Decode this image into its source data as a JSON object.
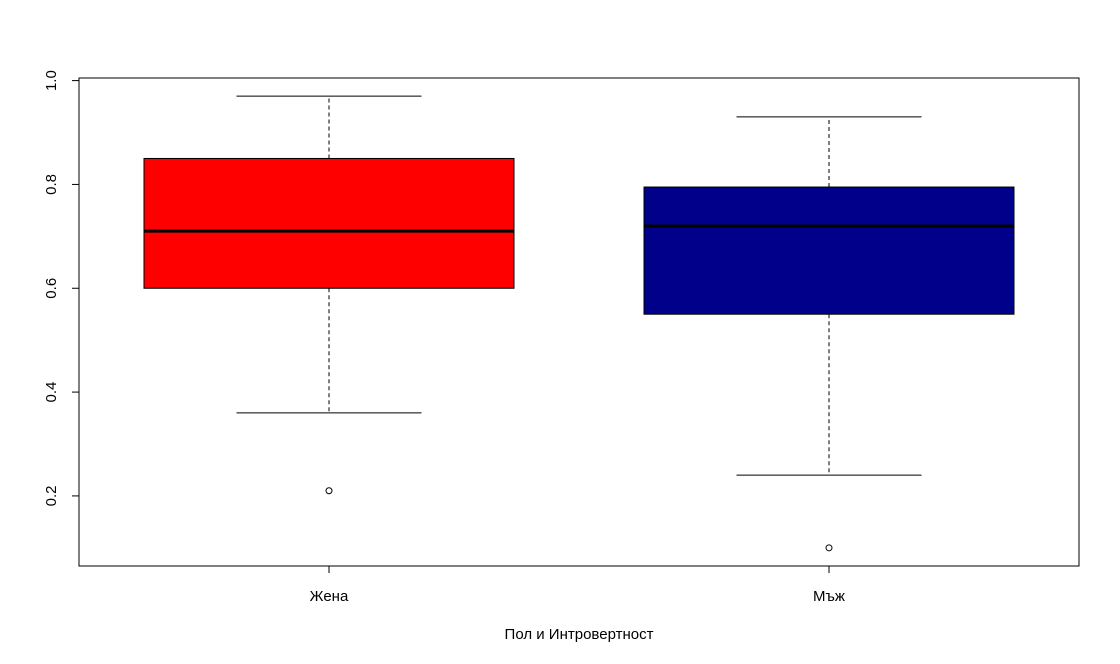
{
  "chart_data": {
    "type": "boxplot",
    "title": "",
    "xlabel": "Пол и Интровертност",
    "ylabel": "",
    "ylim": [
      0.065,
      1.005
    ],
    "yticks": [
      0.2,
      0.4,
      0.6,
      0.8,
      1.0
    ],
    "ytick_labels": [
      "0.2",
      "0.4",
      "0.6",
      "0.8",
      "1.0"
    ],
    "grid": false,
    "legend": "none",
    "categories": [
      "Жена",
      "Мъж"
    ],
    "boxes": [
      {
        "category": "Жена",
        "color": "#ff0000",
        "whisker_low": 0.36,
        "q1": 0.6,
        "median": 0.71,
        "q3": 0.85,
        "whisker_high": 0.97,
        "outliers": [
          0.21
        ]
      },
      {
        "category": "Мъж",
        "color": "#00008b",
        "whisker_low": 0.24,
        "q1": 0.55,
        "median": 0.72,
        "q3": 0.795,
        "whisker_high": 0.93,
        "outliers": [
          0.1
        ]
      }
    ]
  }
}
